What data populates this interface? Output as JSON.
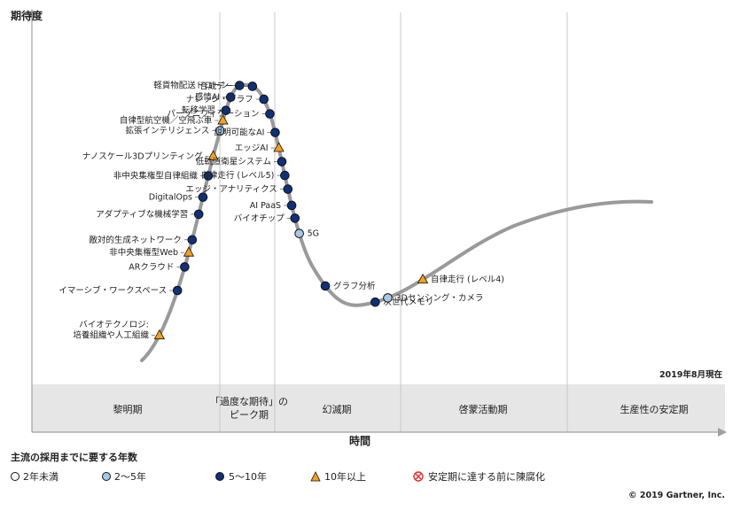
{
  "chart_data": {
    "type": "scatter",
    "y_axis_label": "期待度",
    "x_axis_label": "時間",
    "as_of": "2019年8月現在",
    "copyright": "© 2019 Gartner, Inc.",
    "phases": [
      "黎明期",
      "「過度な期待」の\nピーク期",
      "幻滅期",
      "啓蒙活動期",
      "生産性の安定期"
    ],
    "legend": {
      "title": "主流の採用までに要する年数",
      "items": [
        {
          "key": "lt2",
          "label": "2年未満"
        },
        {
          "key": "2to5",
          "label": "2～5年"
        },
        {
          "key": "5to10",
          "label": "5～10年"
        },
        {
          "key": "gt10",
          "label": "10年以上"
        },
        {
          "key": "obsolete",
          "label": "安定期に達する前に陳腐化"
        }
      ]
    },
    "colors": {
      "lt2": "#ffffff",
      "2to5": "#a8c8e8",
      "5to10": "#10307a",
      "gt10": "#f4a020",
      "obsolete": "#e03030",
      "curve": "#9a9a9a"
    },
    "technologies": [
      {
        "name": "バイオテクノロジ:\n培養組織や人工組織",
        "t": 0.035,
        "cat": "gt10"
      },
      {
        "name": "イマーシブ・ワークスペース",
        "t": 0.09,
        "cat": "5to10"
      },
      {
        "name": "ARクラウド",
        "t": 0.118,
        "cat": "5to10"
      },
      {
        "name": "非中央集権型Web",
        "t": 0.135,
        "cat": "gt10"
      },
      {
        "name": "敵対的生成ネットワーク",
        "t": 0.15,
        "cat": "5to10"
      },
      {
        "name": "アダプティブな機械学習",
        "t": 0.18,
        "cat": "5to10"
      },
      {
        "name": "DigitalOps",
        "t": 0.2,
        "cat": "5to10"
      },
      {
        "name": "非中央集権型自律組織",
        "t": 0.225,
        "cat": "5to10"
      },
      {
        "name": "ナノスケール3Dプリンティング",
        "t": 0.248,
        "cat": "gt10"
      },
      {
        "name": "拡張インテリジェンス",
        "t": 0.278,
        "cat": "2to5"
      },
      {
        "name": "自律型航空機／空飛ぶ車",
        "t": 0.29,
        "cat": "gt10"
      },
      {
        "name": "転移学習",
        "t": 0.302,
        "cat": "5to10"
      },
      {
        "name": "感情AI",
        "t": 0.318,
        "cat": "5to10"
      },
      {
        "name": "軽貨物配送ドローン",
        "t": 0.335,
        "cat": "5to10"
      },
      {
        "name": "合成データ",
        "t": 0.35,
        "cat": "5to10"
      },
      {
        "name": "ナレッジ・グラフ",
        "t": 0.37,
        "cat": "5to10"
      },
      {
        "name": "パーソニフィケーション",
        "t": 0.388,
        "cat": "5to10"
      },
      {
        "name": "説明可能なAI",
        "t": 0.41,
        "cat": "5to10"
      },
      {
        "name": "エッジAI",
        "t": 0.428,
        "cat": "gt10"
      },
      {
        "name": "低軌道衛星システム",
        "t": 0.444,
        "cat": "5to10"
      },
      {
        "name": "自律走行 (レベル5)",
        "t": 0.46,
        "cat": "5to10"
      },
      {
        "name": "エッジ・アナリティクス",
        "t": 0.476,
        "cat": "5to10"
      },
      {
        "name": "AI PaaS",
        "t": 0.495,
        "cat": "5to10"
      },
      {
        "name": "バイオチップ",
        "t": 0.51,
        "cat": "5to10"
      },
      {
        "name": "5G",
        "t": 0.528,
        "cat": "2to5"
      },
      {
        "name": "グラフ分析",
        "t": 0.595,
        "cat": "5to10"
      },
      {
        "name": "次世代メモリ",
        "t": 0.66,
        "cat": "5to10"
      },
      {
        "name": "3Dセンシング・カメラ",
        "t": 0.675,
        "cat": "2to5"
      },
      {
        "name": "自律走行 (レベル4)",
        "t": 0.72,
        "cat": "gt10"
      }
    ]
  }
}
